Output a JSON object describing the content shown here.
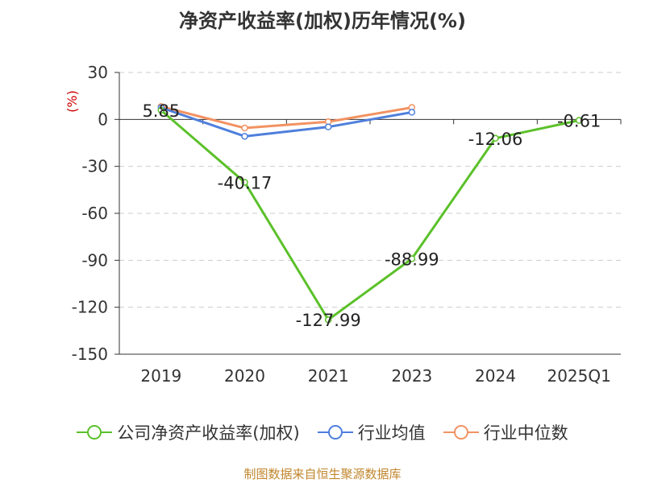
{
  "title": "净资产收益率(加权)历年情况(%)",
  "source": "制图数据来自恒生聚源数据库",
  "chart_data": {
    "type": "line",
    "title": "净资产收益率(加权)历年情况(%)",
    "ylabel": "(%)",
    "xlabel": "",
    "categories": [
      "2019",
      "2020",
      "2021",
      "2023",
      "2024",
      "2025Q1"
    ],
    "ylim": [
      -150,
      30
    ],
    "yticks": [
      30,
      0,
      -30,
      -60,
      -90,
      -120,
      -150
    ],
    "grid": true,
    "legend_position": "bottom",
    "series": [
      {
        "name": "公司净资产收益率(加权)",
        "color": "#5bc12a",
        "values": [
          5.85,
          -40.17,
          -127.99,
          -88.99,
          -12.06,
          -0.61
        ],
        "labels": [
          "5.85",
          "-40.17",
          "-127.99",
          "-88.99",
          "-12.06",
          "-0.61"
        ]
      },
      {
        "name": "行业均值",
        "color": "#4f7fdc",
        "values": [
          7.5,
          -10.8,
          -4.8,
          4.6,
          null,
          null
        ]
      },
      {
        "name": "行业中位数",
        "color": "#f29262",
        "values": [
          8.2,
          -5.5,
          -1.5,
          7.6,
          null,
          null
        ]
      }
    ]
  }
}
